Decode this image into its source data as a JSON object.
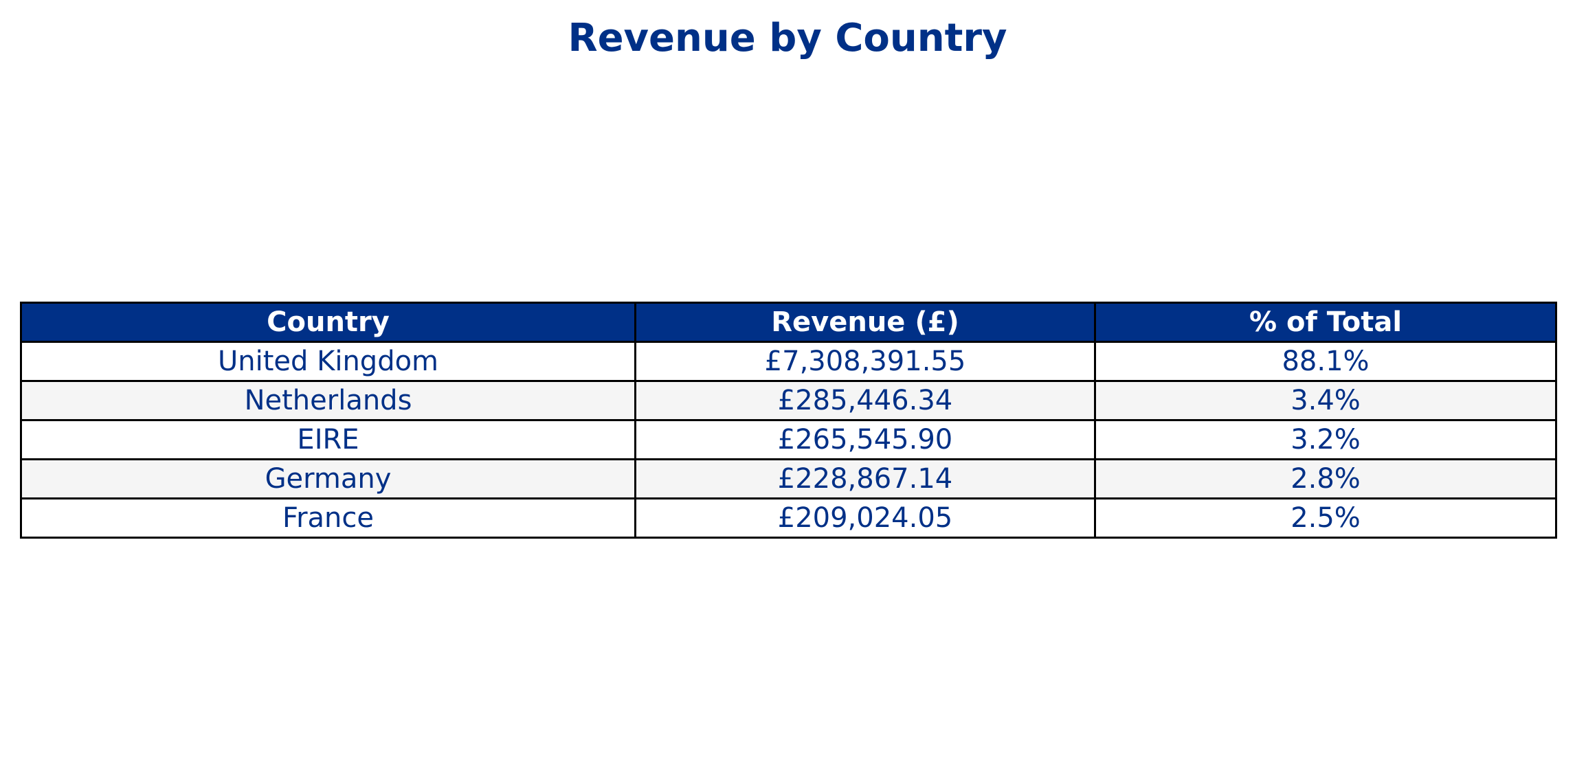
{
  "chart_data": {
    "type": "table",
    "title": "Revenue by Country",
    "columns": [
      "Country",
      "Revenue (£)",
      "% of Total"
    ],
    "rows": [
      [
        "United Kingdom",
        "£7,308,391.55",
        "88.1%"
      ],
      [
        "Netherlands",
        "£285,446.34",
        "3.4%"
      ],
      [
        "EIRE",
        "£265,545.90",
        "3.2%"
      ],
      [
        "Germany",
        "£228,867.14",
        "2.8%"
      ],
      [
        "France",
        "£209,024.05",
        "2.5%"
      ]
    ],
    "colors": {
      "header_background": "#003087",
      "header_text": "#ffffff",
      "body_text": "#003087",
      "row_background": "#ffffff",
      "alt_row_background": "#f5f5f5",
      "border": "#000000"
    }
  }
}
